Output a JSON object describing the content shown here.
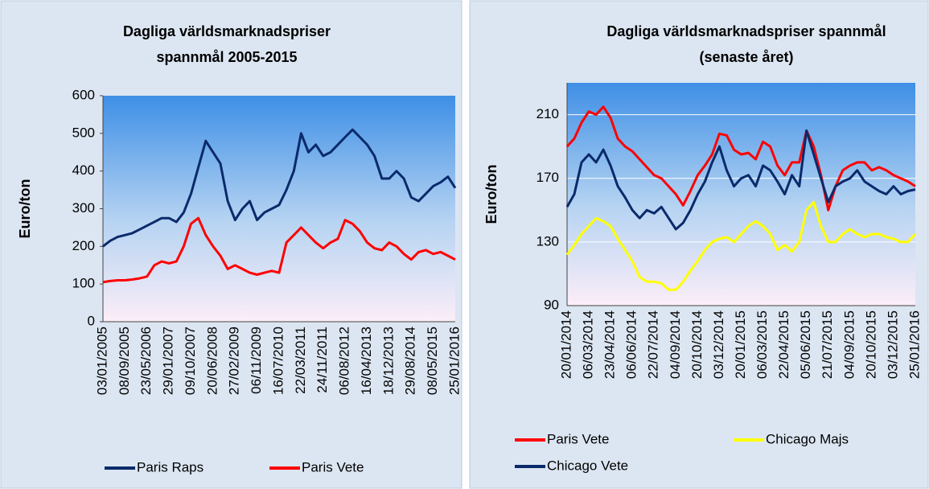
{
  "chart_data": [
    {
      "type": "line",
      "title": [
        "Dagliga världsmarknadspriser",
        "spannmål 2005-2015"
      ],
      "y_label": "Euro/ton",
      "categories": [
        "03/01/2005",
        null,
        null,
        "08/09/2005",
        null,
        null,
        "23/05/2006",
        null,
        null,
        "29/01/2007",
        null,
        null,
        "09/10/2007",
        null,
        null,
        "20/06/2008",
        null,
        null,
        "27/02/2009",
        null,
        null,
        "06/11/2009",
        null,
        null,
        "16/07/2010",
        null,
        null,
        "22/03/2011",
        null,
        null,
        "24/11/2011",
        null,
        null,
        "06/08/2012",
        null,
        null,
        "16/04/2013",
        null,
        null,
        "18/12/2013",
        null,
        null,
        "29/08/2014",
        null,
        null,
        "08/05/2015",
        null,
        null,
        "25/01/2016"
      ],
      "series": [
        {
          "name": "Paris Raps",
          "color": "#0a2a6b",
          "values": [
            200,
            215,
            225,
            230,
            235,
            245,
            255,
            265,
            275,
            275,
            265,
            290,
            340,
            410,
            480,
            450,
            420,
            320,
            270,
            300,
            320,
            270,
            290,
            300,
            310,
            350,
            400,
            500,
            450,
            470,
            440,
            450,
            470,
            490,
            510,
            490,
            470,
            440,
            380,
            380,
            400,
            380,
            330,
            320,
            340,
            360,
            370,
            385,
            355
          ]
        },
        {
          "name": "Paris Vete",
          "color": "#ff0000",
          "values": [
            105,
            108,
            110,
            110,
            112,
            115,
            120,
            150,
            160,
            155,
            160,
            200,
            260,
            275,
            230,
            200,
            175,
            140,
            150,
            140,
            130,
            125,
            130,
            135,
            130,
            210,
            230,
            250,
            230,
            210,
            195,
            210,
            220,
            270,
            260,
            240,
            210,
            195,
            190,
            210,
            200,
            180,
            165,
            185,
            190,
            180,
            185,
            175,
            165
          ]
        }
      ],
      "ylim": [
        0,
        600
      ],
      "yticks": [
        0,
        100,
        200,
        300,
        400,
        500,
        600
      ],
      "grid": false
    },
    {
      "type": "line",
      "title": [
        "Dagliga världsmarknadspriser spannmål",
        "(senaste året)"
      ],
      "y_label": "Euro/ton",
      "categories": [
        "20/01/2014",
        null,
        null,
        "06/03/2014",
        null,
        null,
        "23/04/2014",
        null,
        null,
        "06/06/2014",
        null,
        null,
        "22/07/2014",
        null,
        null,
        "04/09/2014",
        null,
        null,
        "20/10/2014",
        null,
        null,
        "03/12/2014",
        null,
        null,
        "20/01/2015",
        null,
        null,
        "06/03/2015",
        null,
        null,
        "22/04/2015",
        null,
        null,
        "05/06/2015",
        null,
        null,
        "21/07/2015",
        null,
        null,
        "04/09/2015",
        null,
        null,
        "20/10/2015",
        null,
        null,
        "03/12/2015",
        null,
        null,
        "25/01/2016"
      ],
      "series": [
        {
          "name": "Paris Vete",
          "color": "#ff0000",
          "values": [
            190,
            195,
            205,
            212,
            210,
            215,
            208,
            195,
            190,
            187,
            182,
            177,
            172,
            170,
            165,
            160,
            153,
            162,
            172,
            178,
            185,
            198,
            197,
            188,
            185,
            186,
            182,
            193,
            190,
            178,
            172,
            180,
            180,
            200,
            190,
            172,
            150,
            165,
            175,
            178,
            180,
            180,
            175,
            177,
            175,
            172,
            170,
            168,
            165
          ]
        },
        {
          "name": "Chicago Majs",
          "color": "#ffff00",
          "values": [
            122,
            128,
            135,
            140,
            145,
            143,
            140,
            132,
            125,
            118,
            108,
            105,
            105,
            104,
            100,
            100,
            105,
            112,
            118,
            125,
            130,
            132,
            133,
            130,
            135,
            140,
            143,
            140,
            135,
            125,
            128,
            124,
            130,
            150,
            155,
            140,
            130,
            130,
            135,
            138,
            135,
            133,
            135,
            135,
            133,
            132,
            130,
            130,
            135
          ]
        },
        {
          "name": "Chicago Vete",
          "color": "#0a2a6b",
          "values": [
            152,
            160,
            180,
            185,
            180,
            188,
            178,
            165,
            158,
            150,
            145,
            150,
            148,
            152,
            145,
            138,
            142,
            150,
            160,
            168,
            180,
            190,
            175,
            165,
            170,
            172,
            165,
            178,
            175,
            168,
            160,
            172,
            165,
            200,
            185,
            170,
            155,
            165,
            168,
            170,
            175,
            168,
            165,
            162,
            160,
            165,
            160,
            162,
            163
          ]
        }
      ],
      "ylim": [
        90,
        230
      ],
      "yticks": [
        90,
        130,
        170,
        210
      ],
      "grid": true
    }
  ]
}
